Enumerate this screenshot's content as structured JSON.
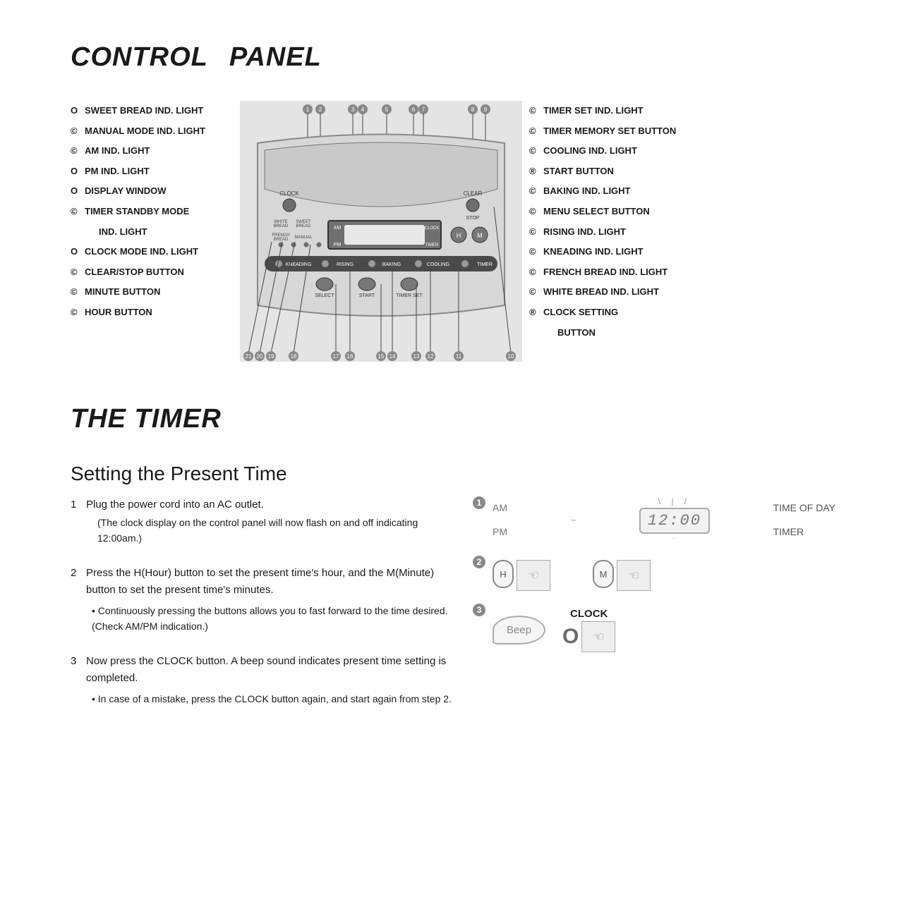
{
  "title_part1": "CONTROL",
  "title_part2": "PANEL",
  "left_labels": [
    {
      "b": "O",
      "t": "SWEET BREAD IND. LIGHT"
    },
    {
      "b": "©",
      "t": "MANUAL MODE IND. LIGHT"
    },
    {
      "b": "©",
      "t": "AM IND. LIGHT"
    },
    {
      "b": "O",
      "t": "PM IND. LIGHT"
    },
    {
      "b": "O",
      "t": "DISPLAY WINDOW"
    },
    {
      "b": "©",
      "t": "TIMER STANDBY MODE",
      "t2": "IND. LIGHT"
    },
    {
      "b": "O",
      "t": "CLOCK MODE IND. LIGHT"
    },
    {
      "b": "©",
      "t": "CLEAR/STOP BUTTON"
    },
    {
      "b": "©",
      "t": "MINUTE BUTTON"
    },
    {
      "b": "©",
      "t": "HOUR BUTTON"
    }
  ],
  "right_labels": [
    {
      "b": "©",
      "t": "TIMER SET IND. LIGHT"
    },
    {
      "b": "©",
      "t": "TIMER MEMORY SET BUTTON"
    },
    {
      "b": "©",
      "t": "COOLING IND. LIGHT"
    },
    {
      "b": "®",
      "t": "START BUTTON"
    },
    {
      "b": "©",
      "t": "BAKING IND. LIGHT"
    },
    {
      "b": "©",
      "t": "MENU SELECT BUTTON"
    },
    {
      "b": "©",
      "t": "RISING IND. LIGHT"
    },
    {
      "b": "©",
      "t": "KNEADING IND. LIGHT"
    },
    {
      "b": "©",
      "t": "FRENCH BREAD IND. LIGHT"
    },
    {
      "b": "©",
      "t": "WHITE BREAD IND. LIGHT"
    },
    {
      "b": "®",
      "t": "CLOCK SETTING",
      "t2": "BUTTON"
    }
  ],
  "diagram_labels": {
    "clock": "CLOCK",
    "clear": "CLEAR",
    "stop": "STOP",
    "white_bread": "WHITE\nBREAD",
    "sweet_bread": "SWEET\nBREAD",
    "french_bread": "FRENCH\nBREAD",
    "manual": "MANUAL",
    "am": "AM",
    "pm": "PM",
    "clock2": "CLOCK",
    "timer": "TIMER",
    "kneading": "KNEADING",
    "rising": "RISING",
    "baking": "BAKING",
    "cooling": "COOLING",
    "timer2": "TIMER",
    "select": "SELECT",
    "start": "START",
    "timer_set": "TIMER SET",
    "h": "H",
    "m": "M"
  },
  "timer_title": "THE TIMER",
  "timer_subtitle": "Setting the Present Time",
  "steps": [
    {
      "n": "1",
      "text": "Plug the power cord into an AC outlet.",
      "sub": "(The clock display on the control panel will now flash on and off indicating 12:00am.)"
    },
    {
      "n": "2",
      "text": "Press the H(Hour) button to set the present time's hour, and the M(Minute) button to set the present time's minutes.",
      "bullet": "Continuously pressing the buttons allows you to fast forward to the time desired. (Check AM/PM indication.)"
    },
    {
      "n": "3",
      "text": "Now press the CLOCK button. A beep sound indicates present time setting is completed.",
      "bullet": "In case of a mistake, press the CLOCK button again, and start again from step 2."
    }
  ],
  "illus": {
    "am": "AM",
    "pm": "PM",
    "lcd": "12:00",
    "time_of_day": "TIME OF DAY",
    "timer": "TIMER",
    "h": "H",
    "m": "M",
    "beep": "Beep",
    "clock": "CLOCK",
    "o": "O",
    "hand": "☜"
  },
  "colors": {
    "text": "#1a1a1a",
    "panel_bg": "#d7d7d7",
    "panel_dark": "#6a6a6a",
    "btn_fill": "#6d6d6d",
    "pill_fill": "#4a4a4a",
    "grey": "#888888"
  }
}
